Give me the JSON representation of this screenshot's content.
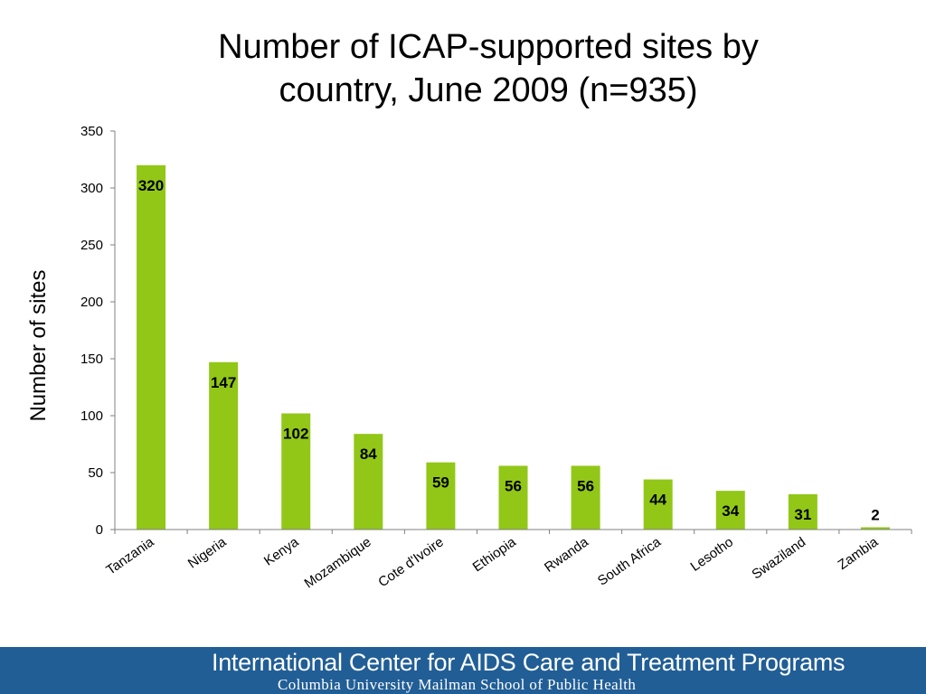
{
  "chart_data": {
    "type": "bar",
    "title_lines": [
      "Number of ICAP-supported sites by",
      "country, June 2009 (n=935)"
    ],
    "xlabel": "",
    "ylabel": "Number of sites",
    "ylim": [
      0,
      350
    ],
    "yticks": [
      0,
      50,
      100,
      150,
      200,
      250,
      300,
      350
    ],
    "categories": [
      "Tanzania",
      "Nigeria",
      "Kenya",
      "Mozambique",
      "Cote d'Ivoire",
      "Ethiopia",
      "Rwanda",
      "South Africa",
      "Lesotho",
      "Swaziland",
      "Zambia"
    ],
    "values": [
      320,
      147,
      102,
      84,
      59,
      56,
      56,
      44,
      34,
      31,
      2
    ],
    "data_labels": true,
    "grid": false,
    "legend": "none",
    "bar_color": "#92c717"
  },
  "footer": {
    "line1": "International Center for AIDS Care and Treatment Programs",
    "line2": "Columbia University Mailman School of Public Health",
    "background": "#215e96"
  }
}
